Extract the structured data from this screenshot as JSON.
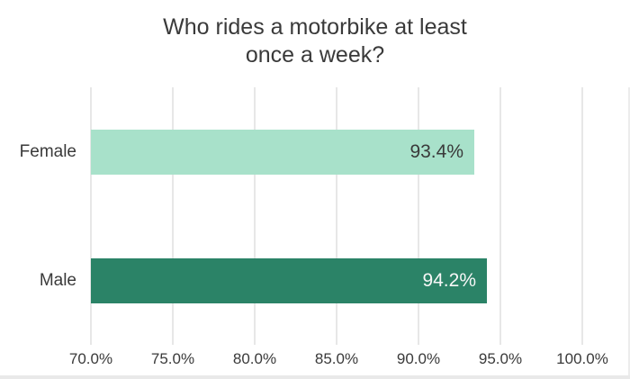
{
  "title": {
    "line1": "Who rides a motorbike at least",
    "line2": "once a week?"
  },
  "chart_data": {
    "type": "bar",
    "orientation": "horizontal",
    "title": "Who rides a motorbike at least once a week?",
    "categories": [
      "Female",
      "Male"
    ],
    "values": [
      93.4,
      94.2
    ],
    "value_labels": [
      "93.4%",
      "94.2%"
    ],
    "bar_colors": [
      "#a8e1ca",
      "#2b8367"
    ],
    "value_label_colors": [
      "#3a3a3a",
      "#f7f7f7"
    ],
    "xlabel": "",
    "ylabel": "",
    "xlim": [
      70,
      100
    ],
    "x_ticks": [
      70,
      75,
      80,
      85,
      90,
      95,
      100
    ],
    "x_tick_labels": [
      "70.0%",
      "75.0%",
      "80.0%",
      "85.0%",
      "90.0%",
      "95.0%",
      "100.0%"
    ],
    "grid": "vertical-only",
    "legend": "none"
  },
  "colors": {
    "background": "#ffffff",
    "gridline": "#e7e7e7",
    "text": "#3a3a3a",
    "edge_strip": "#e9e9e9"
  }
}
